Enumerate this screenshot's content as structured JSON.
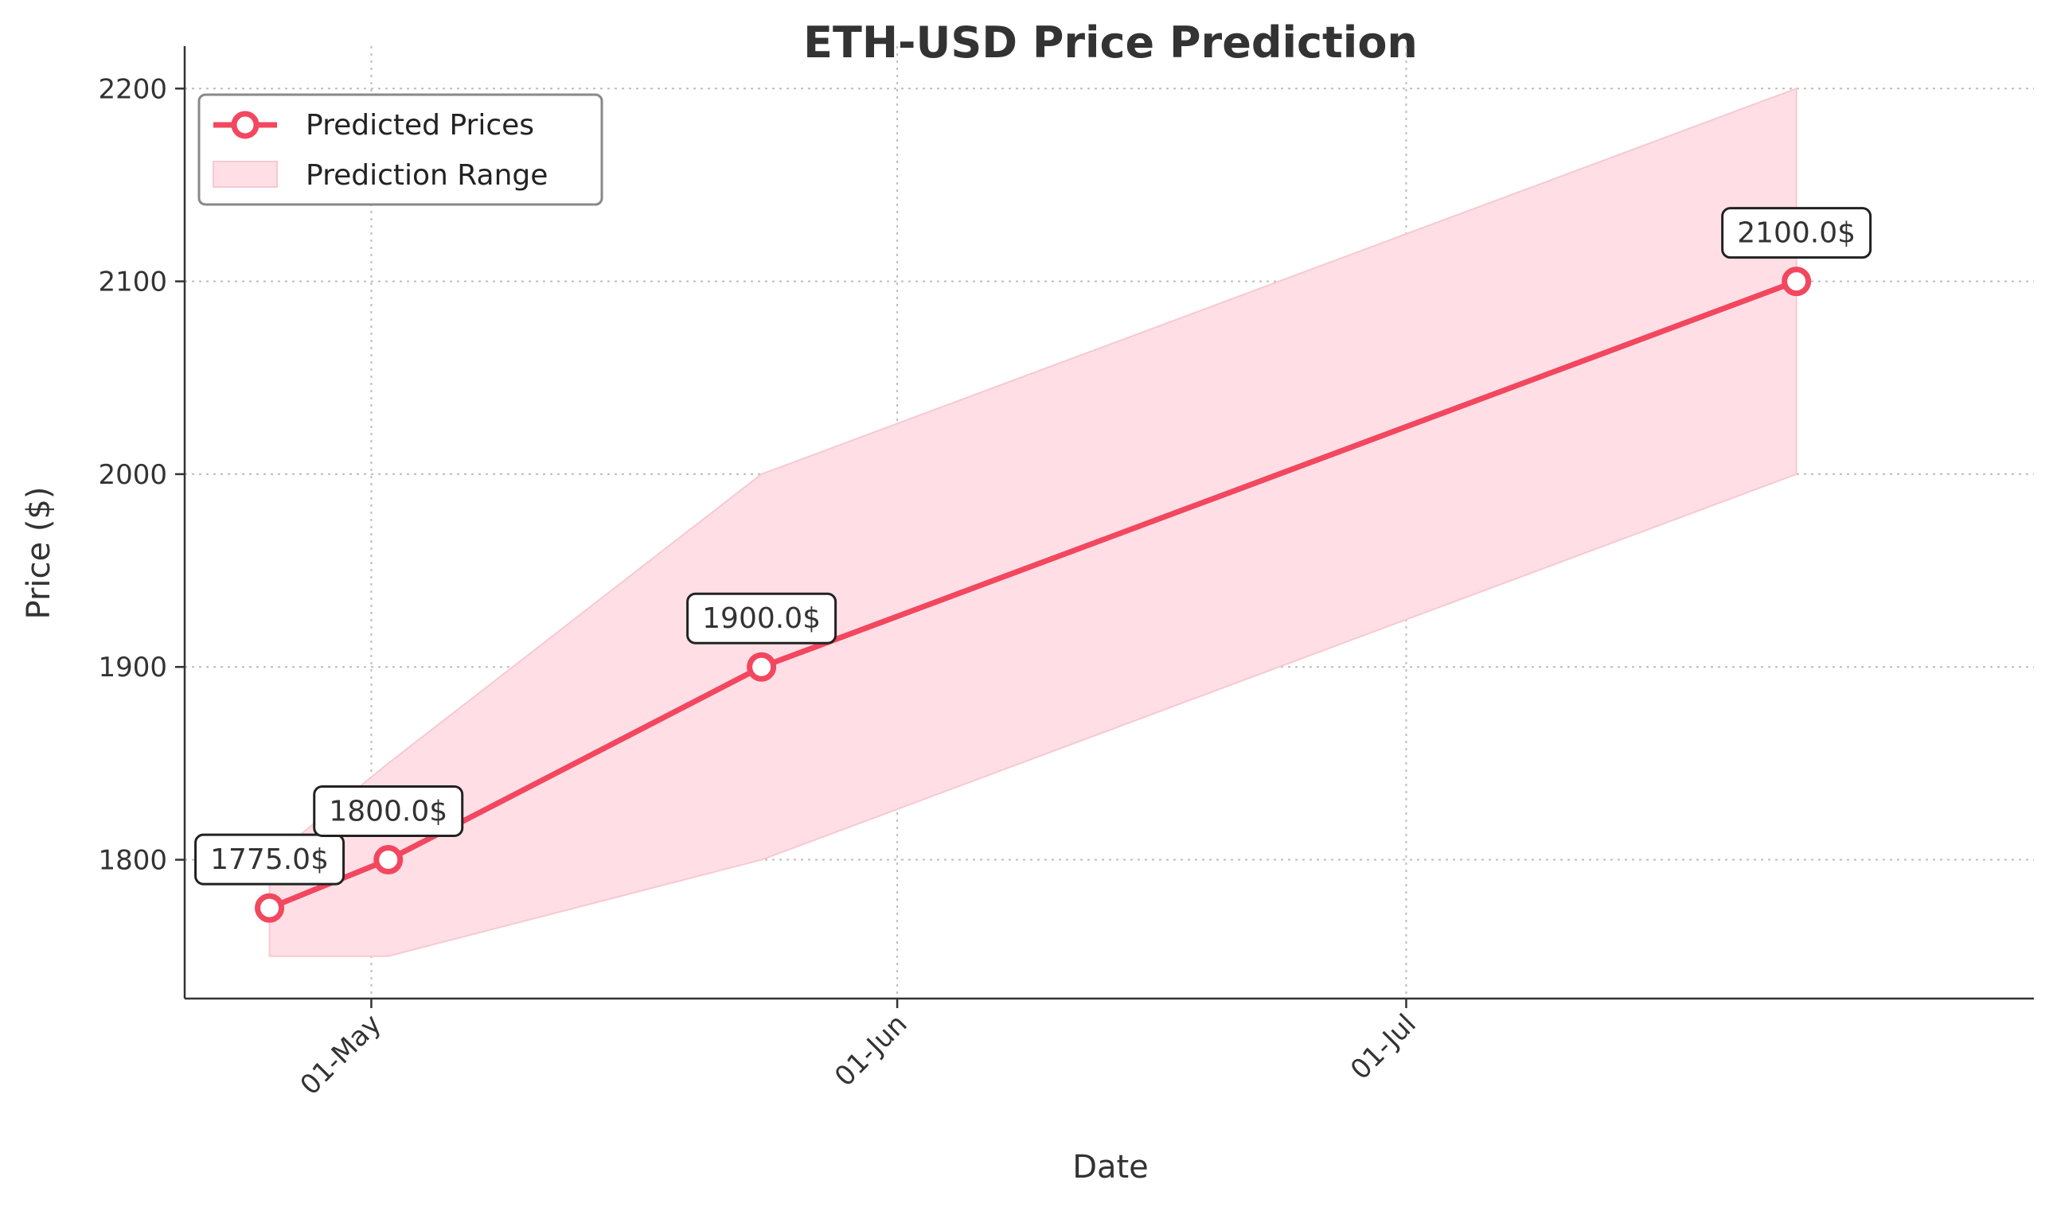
{
  "chart_data": {
    "type": "line",
    "title": "ETH-USD Price Prediction",
    "xlabel": "Date",
    "ylabel": "Price ($)",
    "x_ticks": [
      {
        "date": "2023-05-01",
        "label": "01-May"
      },
      {
        "date": "2023-06-01",
        "label": "01-Jun"
      },
      {
        "date": "2023-07-01",
        "label": "01-Jul"
      }
    ],
    "y_ticks": [
      1800,
      1900,
      2000,
      2100,
      2200
    ],
    "xlim": [
      "2023-04-20",
      "2023-08-07"
    ],
    "ylim": [
      1728,
      2222
    ],
    "grid": true,
    "legend_position": "upper left",
    "series": [
      {
        "name": "Predicted Prices",
        "kind": "line",
        "color": "#f2475f",
        "points": [
          {
            "date": "2023-04-25",
            "value": 1775.0
          },
          {
            "date": "2023-05-02",
            "value": 1800.0
          },
          {
            "date": "2023-05-24",
            "value": 1900.0
          },
          {
            "date": "2023-07-24",
            "value": 2100.0
          }
        ]
      },
      {
        "name": "Prediction Range",
        "kind": "band",
        "color": "#ffdfe5",
        "points": [
          {
            "date": "2023-04-25",
            "low": 1750,
            "high": 1800
          },
          {
            "date": "2023-05-02",
            "low": 1750,
            "high": 1850
          },
          {
            "date": "2023-05-24",
            "low": 1800,
            "high": 2000
          },
          {
            "date": "2023-07-24",
            "low": 2000,
            "high": 2200
          }
        ]
      }
    ],
    "annotations": [
      "1775.0$",
      "1800.0$",
      "1900.0$",
      "2100.0$"
    ]
  }
}
